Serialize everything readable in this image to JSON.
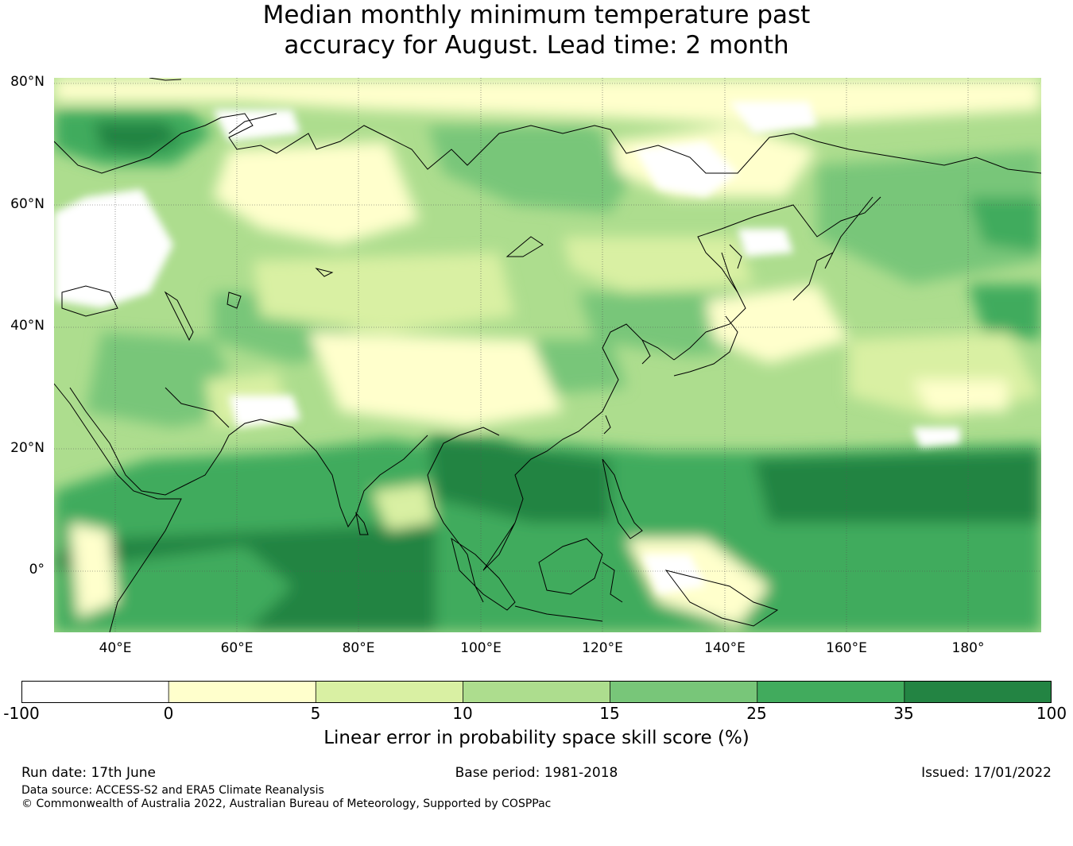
{
  "title": {
    "line1": "Median monthly minimum temperature past",
    "line2": "accuracy for August. Lead time: 2 month"
  },
  "map": {
    "lat_ticks": [
      "80°N",
      "60°N",
      "40°N",
      "20°N",
      "0°"
    ],
    "lon_ticks": [
      "40°E",
      "60°E",
      "80°E",
      "100°E",
      "120°E",
      "140°E",
      "160°E",
      "180°"
    ],
    "extent": {
      "lon": [
        30,
        192
      ],
      "lat": [
        -10,
        81
      ]
    }
  },
  "colorbar": {
    "label": "Linear error in probability space skill score (%)",
    "ticks": [
      "-100",
      "0",
      "5",
      "10",
      "15",
      "25",
      "35",
      "100"
    ],
    "colors": [
      "#ffffff",
      "#ffffcc",
      "#d9f0a3",
      "#addd8e",
      "#78c679",
      "#41ab5d",
      "#238443"
    ]
  },
  "footer": {
    "run_date": "Run date: 17th June",
    "base_period": "Base period: 1981-2018",
    "issued": "Issued: 17/01/2022",
    "data_source": "Data source: ACCESS-S2 and ERA5 Climate Reanalysis",
    "copyright": "© Commonwealth of Australia 2022, Australian Bureau of Meteorology, Supported by COSPPac"
  }
}
